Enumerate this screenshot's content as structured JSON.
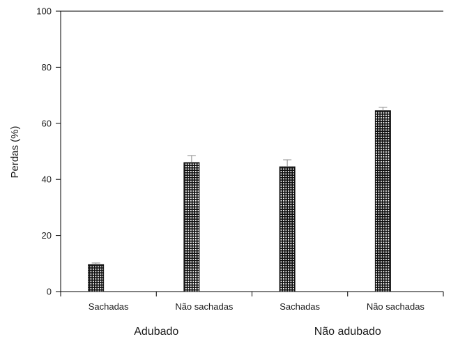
{
  "chart_data": {
    "type": "bar",
    "title": "",
    "xlabel": "",
    "ylabel": "Perdas (%)",
    "ylim": [
      0,
      100
    ],
    "yticks": [
      0,
      20,
      40,
      60,
      80,
      100
    ],
    "grid": false,
    "categories": [
      "Sachadas",
      "Não sachadas",
      "Sachadas",
      "Não sachadas"
    ],
    "groups": [
      {
        "label": "Adubado",
        "categories": [
          "Sachadas",
          "Não sachadas"
        ]
      },
      {
        "label": "Não adubado",
        "categories": [
          "Sachadas",
          "Não sachadas"
        ]
      }
    ],
    "values": [
      9.6,
      46.0,
      44.5,
      64.5
    ],
    "errors": [
      0.6,
      2.5,
      2.5,
      1.2
    ],
    "bar_color": "#111111",
    "bar_pattern": "cross-hatch",
    "hatch_color": "#ffffff"
  }
}
